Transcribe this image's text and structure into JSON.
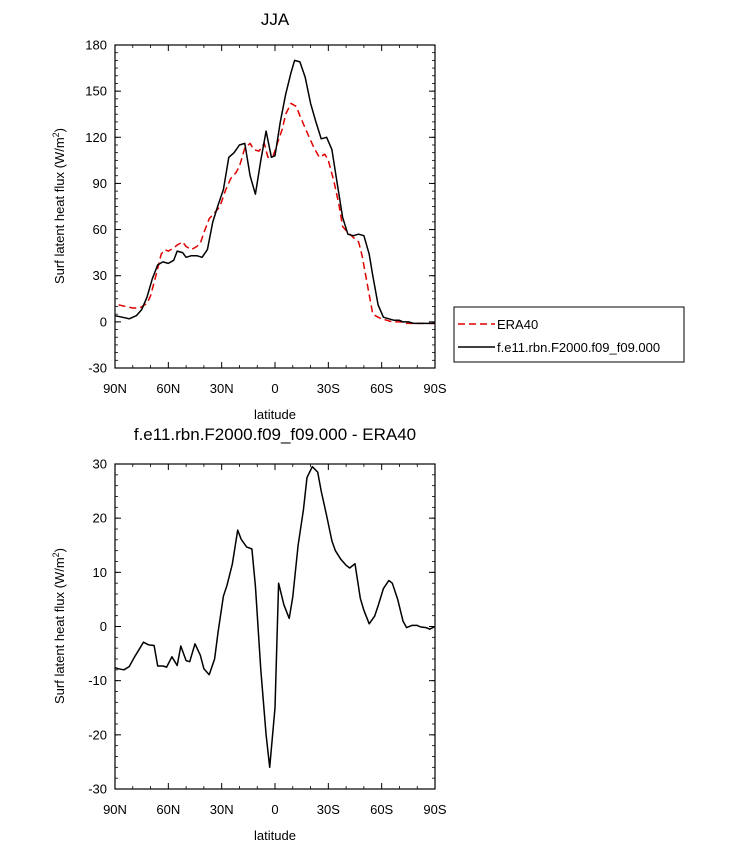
{
  "chart_data": [
    {
      "type": "line",
      "title": "JJA",
      "xlabel": "latitude",
      "ylabel": "Surf latent heat flux (W/m",
      "ylabel_sup": "2",
      "ylabel_close": ")",
      "xlim": [
        90,
        -90
      ],
      "ylim": [
        -30,
        180
      ],
      "xtick_values": [
        90,
        60,
        30,
        0,
        -30,
        -60,
        -90
      ],
      "xtick_labels": [
        "90N",
        "60N",
        "30N",
        "0",
        "30S",
        "60S",
        "90S"
      ],
      "ytick_values": [
        -30,
        0,
        30,
        60,
        90,
        120,
        150,
        180
      ],
      "ytick_labels": [
        "-30",
        "0",
        "30",
        "60",
        "90",
        "120",
        "150",
        "180"
      ],
      "legend_position": "right",
      "series": [
        {
          "name": "ERA40",
          "color": "#e00000",
          "dash": "dashed",
          "x": [
            88,
            84,
            80,
            76,
            72,
            70,
            67,
            64,
            62,
            60,
            57,
            55,
            52,
            50,
            47,
            44,
            42,
            40,
            37,
            34,
            31,
            28,
            25,
            22,
            20,
            17,
            14,
            12,
            9,
            6,
            4,
            1,
            -1,
            -4,
            -6,
            -9,
            -12,
            -14,
            -17,
            -20,
            -22,
            -25,
            -28,
            -30,
            -33,
            -36,
            -38,
            -41,
            -44,
            -47,
            -49,
            -52,
            -55,
            -58,
            -60,
            -63,
            -66,
            -69,
            -71,
            -74,
            -77,
            -80,
            -82,
            -85,
            -88,
            -90
          ],
          "y": [
            11,
            10,
            9,
            9,
            12,
            17,
            30,
            44,
            47,
            46,
            48,
            50,
            52,
            49,
            47,
            49,
            51,
            58,
            67,
            71,
            75,
            85,
            93,
            97,
            101,
            113,
            116,
            112,
            111,
            116,
            107,
            108,
            115,
            125,
            135,
            142,
            140,
            134,
            126,
            118,
            113,
            107,
            109,
            105,
            92,
            76,
            62,
            58,
            55,
            52,
            43,
            24,
            5,
            3,
            2,
            1,
            0,
            0,
            0,
            -1,
            -1,
            -1,
            -1,
            -1,
            -1,
            -1
          ]
        },
        {
          "name": "f.e11.rbn.F2000.f09_f09.000",
          "color": "#000000",
          "dash": "solid",
          "x": [
            90,
            86,
            82,
            78,
            75,
            72,
            69,
            66,
            63,
            60,
            57,
            55,
            52,
            50,
            47,
            44,
            41,
            38,
            35,
            32,
            29,
            26,
            23,
            20,
            17,
            14,
            11,
            8,
            5,
            2,
            0,
            -3,
            -6,
            -9,
            -11,
            -14,
            -17,
            -20,
            -23,
            -26,
            -29,
            -32,
            -35,
            -38,
            -41,
            -44,
            -47,
            -50,
            -53,
            -55,
            -58,
            -61,
            -64,
            -67,
            -70,
            -72,
            -75,
            -78,
            -81,
            -84,
            -87,
            -90
          ],
          "y": [
            4,
            3,
            2,
            4,
            8,
            16,
            28,
            37,
            39,
            38,
            40,
            46,
            45,
            42,
            43,
            43,
            42,
            47,
            65,
            76,
            86,
            107,
            110,
            115,
            116,
            95,
            83,
            105,
            124,
            107,
            108,
            130,
            148,
            162,
            170,
            169,
            159,
            142,
            130,
            119,
            120,
            112,
            90,
            68,
            57,
            56,
            57,
            56,
            44,
            30,
            11,
            3,
            2,
            1,
            1,
            0,
            0,
            -1,
            -1,
            -1,
            -1,
            -1
          ]
        }
      ]
    },
    {
      "type": "line",
      "title": "f.e11.rbn.F2000.f09_f09.000 - ERA40",
      "xlabel": "latitude",
      "ylabel": "Surf latent heat flux (W/m",
      "ylabel_sup": "2",
      "ylabel_close": ")",
      "xlim": [
        90,
        -90
      ],
      "ylim": [
        -30,
        30
      ],
      "xtick_values": [
        90,
        60,
        30,
        0,
        -30,
        -60,
        -90
      ],
      "xtick_labels": [
        "90N",
        "60N",
        "30N",
        "0",
        "30S",
        "60S",
        "90S"
      ],
      "ytick_values": [
        -30,
        -20,
        -10,
        0,
        10,
        20,
        30
      ],
      "ytick_labels": [
        "-30",
        "-20",
        "-10",
        "0",
        "10",
        "20",
        "30"
      ],
      "series": [
        {
          "color": "#000000",
          "dash": "solid",
          "x": [
            90,
            88,
            85,
            82,
            79,
            76,
            74,
            71,
            68,
            66,
            63,
            61,
            58,
            55,
            53,
            50,
            48,
            45,
            42,
            40,
            37,
            34,
            32,
            29,
            27,
            24,
            21,
            19,
            16,
            13,
            11,
            8,
            5,
            3,
            0,
            -2,
            -5,
            -8,
            -10,
            -13,
            -16,
            -18,
            -21,
            -24,
            -26,
            -29,
            -32,
            -34,
            -37,
            -40,
            -42,
            -45,
            -48,
            -50,
            -53,
            -56,
            -58,
            -61,
            -64,
            -66,
            -69,
            -72,
            -74,
            -77,
            -80,
            -82,
            -85,
            -87,
            -90
          ],
          "y": [
            -7.6,
            -7.8,
            -8.0,
            -7.4,
            -5.6,
            -4.0,
            -2.9,
            -3.4,
            -3.5,
            -7.3,
            -7.3,
            -7.5,
            -5.6,
            -7.2,
            -3.6,
            -6.3,
            -6.5,
            -3.2,
            -5.3,
            -7.8,
            -8.9,
            -6.0,
            -1.0,
            5.6,
            7.6,
            11.5,
            17.8,
            16.1,
            14.7,
            14.3,
            7.5,
            -8.0,
            -20.0,
            -26.0,
            -15.0,
            8.0,
            4.0,
            1.5,
            5.5,
            15.0,
            21.5,
            27.5,
            29.5,
            28.5,
            25.0,
            20.5,
            15.8,
            14.0,
            12.4,
            11.3,
            10.8,
            11.6,
            5.2,
            3.0,
            0.5,
            1.9,
            3.8,
            7.0,
            8.5,
            8.0,
            5.0,
            1.0,
            -0.2,
            0.2,
            0.2,
            -0.1,
            -0.2,
            -0.5,
            0.0
          ]
        }
      ]
    }
  ]
}
